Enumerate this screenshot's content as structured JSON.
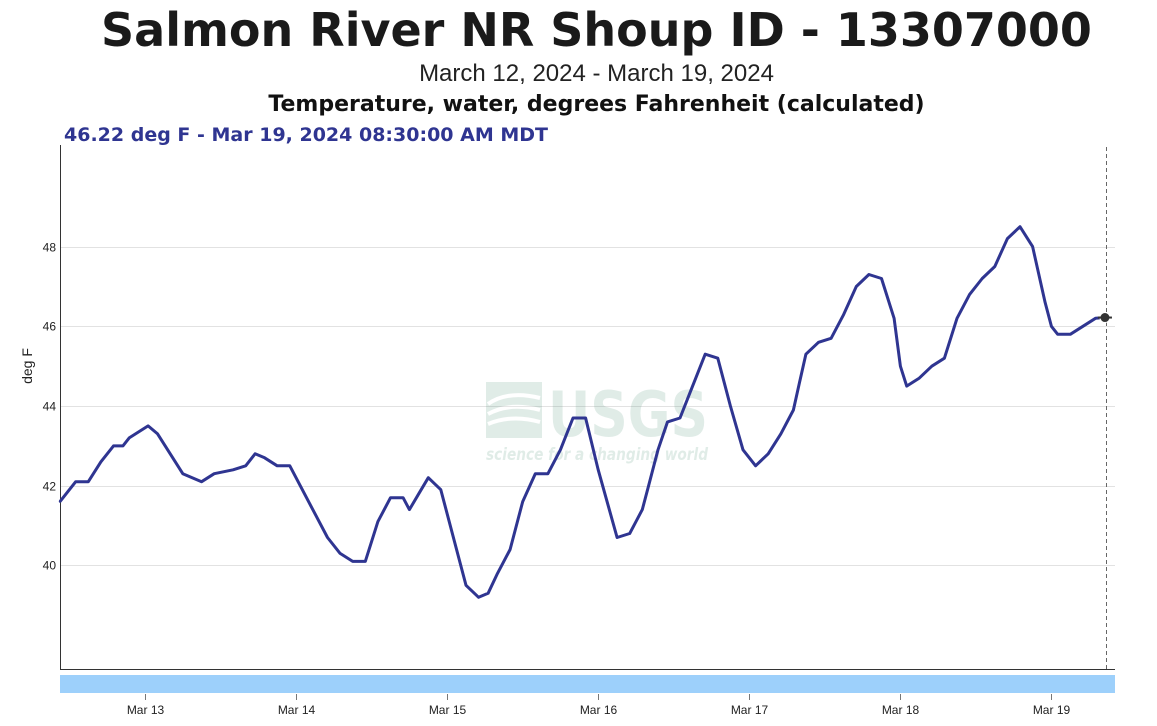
{
  "header": {
    "title": "Salmon River NR Shoup ID - 13307000",
    "date_range": "March 12, 2024 - March 19, 2024",
    "parameter": "Temperature, water, degrees Fahrenheit (calculated)",
    "readout": "46.22 deg F - Mar 19, 2024 08:30:00 AM MDT"
  },
  "watermark": {
    "logo_text": "USGS",
    "tagline": "science for a changing world"
  },
  "colors": {
    "series": "#2f3591",
    "grid": "#e2e2e2",
    "navigator": "#9dd0fb",
    "readout": "#2f3591"
  },
  "chart_data": {
    "type": "line",
    "title": "Salmon River NR Shoup ID - 13307000",
    "subtitle": "March 12, 2024 - March 19, 2024",
    "xlabel": "",
    "ylabel": "deg F",
    "x_ticks": [
      "Mar 13",
      "Mar 14",
      "Mar 15",
      "Mar 16",
      "Mar 17",
      "Mar 18",
      "Mar 19"
    ],
    "y_ticks": [
      40,
      42,
      44,
      46,
      48
    ],
    "xlim": [
      "2024-03-12T10:30",
      "2024-03-19T08:40"
    ],
    "ylim": [
      37.4,
      50.5
    ],
    "grid": true,
    "legend": "none",
    "series": [
      {
        "x": [
          "2024-03-12T10:30",
          "2024-03-12T13:00",
          "2024-03-12T15:00",
          "2024-03-12T17:00",
          "2024-03-12T19:00",
          "2024-03-12T20:30",
          "2024-03-12T21:30",
          "2024-03-12T22:30",
          "2024-03-13T00:30",
          "2024-03-13T02:00",
          "2024-03-13T04:00",
          "2024-03-13T06:00",
          "2024-03-13T09:00",
          "2024-03-13T11:00",
          "2024-03-13T14:00",
          "2024-03-13T16:00",
          "2024-03-13T17:30",
          "2024-03-13T19:00",
          "2024-03-13T21:00",
          "2024-03-13T22:00",
          "2024-03-13T23:00",
          "2024-03-14T03:00",
          "2024-03-14T05:00",
          "2024-03-14T07:00",
          "2024-03-14T09:00",
          "2024-03-14T11:00",
          "2024-03-14T13:00",
          "2024-03-14T15:00",
          "2024-03-14T17:00",
          "2024-03-14T18:00",
          "2024-03-14T19:30",
          "2024-03-14T21:00",
          "2024-03-14T23:00",
          "2024-03-15T01:00",
          "2024-03-15T03:00",
          "2024-03-15T05:00",
          "2024-03-15T06:30",
          "2024-03-15T08:00",
          "2024-03-15T10:00",
          "2024-03-15T12:00",
          "2024-03-15T14:00",
          "2024-03-15T16:00",
          "2024-03-15T18:00",
          "2024-03-15T20:00",
          "2024-03-15T22:00",
          "2024-03-16T00:00",
          "2024-03-16T03:00",
          "2024-03-16T05:00",
          "2024-03-16T07:00",
          "2024-03-16T08:00",
          "2024-03-16T09:30",
          "2024-03-16T11:00",
          "2024-03-16T13:00",
          "2024-03-16T15:00",
          "2024-03-16T17:00",
          "2024-03-16T19:00",
          "2024-03-16T21:00",
          "2024-03-16T23:00",
          "2024-03-17T01:00",
          "2024-03-17T03:00",
          "2024-03-17T05:00",
          "2024-03-17T07:00",
          "2024-03-17T08:00",
          "2024-03-17T09:00",
          "2024-03-17T11:00",
          "2024-03-17T13:00",
          "2024-03-17T15:00",
          "2024-03-17T17:00",
          "2024-03-17T19:00",
          "2024-03-17T21:00",
          "2024-03-17T23:00",
          "2024-03-18T00:00",
          "2024-03-18T01:00",
          "2024-03-18T03:00",
          "2024-03-18T05:00",
          "2024-03-18T07:00",
          "2024-03-18T09:00",
          "2024-03-18T11:00",
          "2024-03-18T13:00",
          "2024-03-18T15:00",
          "2024-03-18T17:00",
          "2024-03-18T19:00",
          "2024-03-18T21:00",
          "2024-03-18T23:00",
          "2024-03-19T00:00",
          "2024-03-19T01:00",
          "2024-03-19T03:00",
          "2024-03-19T05:00",
          "2024-03-19T07:00",
          "2024-03-19T08:30"
        ],
        "y": [
          41.6,
          42.1,
          42.1,
          42.6,
          43.0,
          43.0,
          43.2,
          43.3,
          43.5,
          43.3,
          42.8,
          42.3,
          42.1,
          42.3,
          42.4,
          42.5,
          42.8,
          42.7,
          42.5,
          42.5,
          42.5,
          41.3,
          40.7,
          40.3,
          40.1,
          40.1,
          41.1,
          41.7,
          41.7,
          41.4,
          41.8,
          42.2,
          41.9,
          40.7,
          39.5,
          39.2,
          39.3,
          39.8,
          40.4,
          41.6,
          42.3,
          42.3,
          42.9,
          43.7,
          43.7,
          42.4,
          40.7,
          40.8,
          41.4,
          42.0,
          42.9,
          43.6,
          43.7,
          44.5,
          45.3,
          45.2,
          44.0,
          42.9,
          42.5,
          42.8,
          43.3,
          43.9,
          44.6,
          45.3,
          45.6,
          45.7,
          46.3,
          47.0,
          47.3,
          47.2,
          46.2,
          45.0,
          44.5,
          44.7,
          45.0,
          45.2,
          46.2,
          46.8,
          47.2,
          47.5,
          48.2,
          48.5,
          48.0,
          46.6,
          46.0,
          45.8,
          45.8,
          46.0,
          46.2,
          46.22
        ]
      }
    ]
  }
}
